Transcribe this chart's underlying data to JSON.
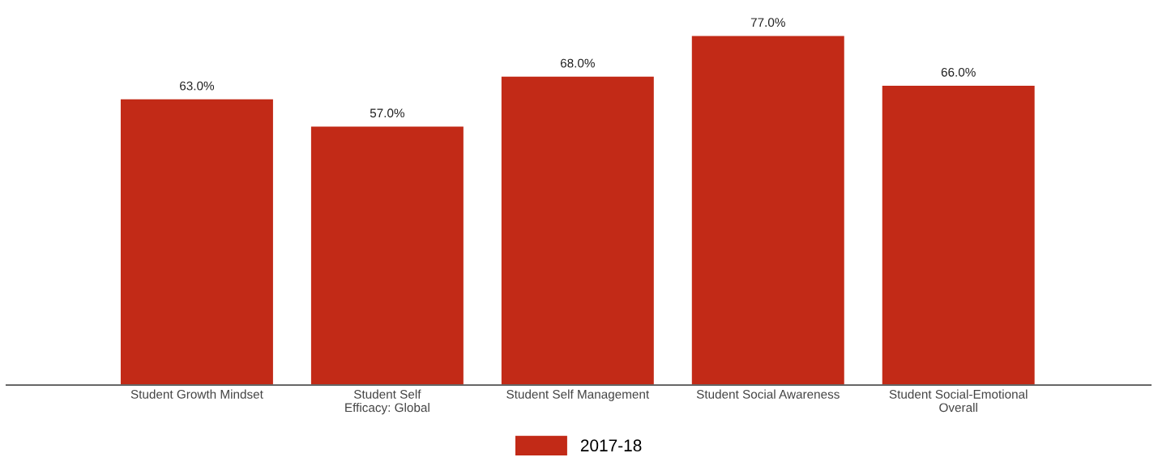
{
  "chart_data": {
    "type": "bar",
    "categories": [
      "Student Growth Mindset",
      "Student Self\nEfficacy: Global",
      "Student Self Management",
      "Student Social Awareness",
      "Student Social-Emotional\nOverall"
    ],
    "series": [
      {
        "name": "2017-18",
        "color": "#c22a17",
        "values": [
          63,
          57,
          68,
          77,
          66
        ],
        "value_labels": [
          "63.0%",
          "57.0%",
          "68.0%",
          "77.0%",
          "66.0%"
        ]
      }
    ],
    "legend": "bottom",
    "grid": false,
    "tick_labels": "x"
  }
}
